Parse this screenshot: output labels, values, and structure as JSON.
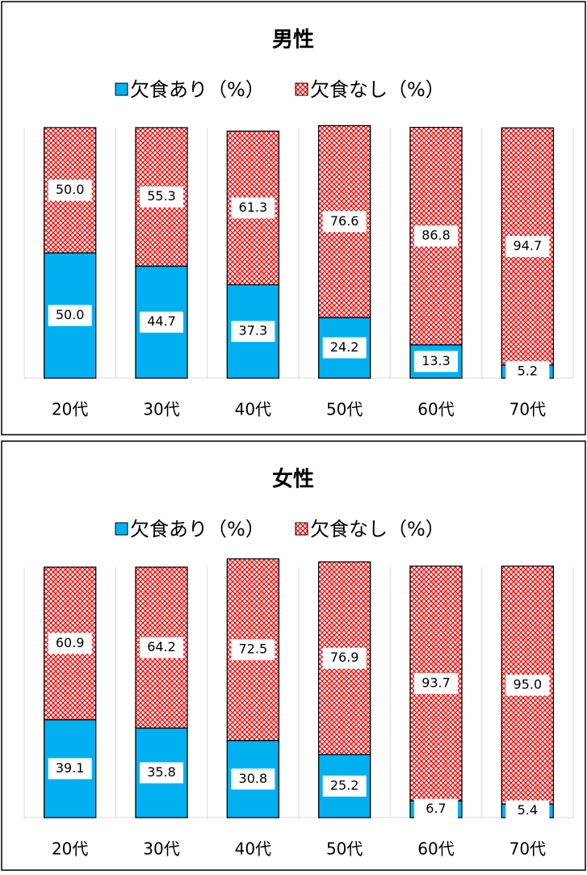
{
  "chart_data": [
    {
      "type": "stacked_bar",
      "title": "男性",
      "categories": [
        "20代",
        "30代",
        "40代",
        "50代",
        "60代",
        "70代"
      ],
      "series": [
        {
          "name": "欠食あり（%）",
          "color": "#00b0f0",
          "values": [
            50,
            44.7,
            37.3,
            24.2,
            13.3,
            5.2
          ],
          "value_labels": [
            "50.0",
            "44.7",
            "37.3",
            "24.2",
            "13.3",
            "5.2"
          ]
        },
        {
          "name": "欠食なし（%）",
          "color": "#ff0000",
          "values": [
            50,
            55.3,
            61.3,
            76.6,
            86.8,
            94.7
          ],
          "value_labels": [
            "50.0",
            "55.3",
            "61.3",
            "76.6",
            "86.8",
            "94.7"
          ]
        }
      ],
      "ylim": [
        0,
        100
      ]
    },
    {
      "type": "stacked_bar",
      "title": "女性",
      "categories": [
        "20代",
        "30代",
        "40代",
        "50代",
        "60代",
        "70代"
      ],
      "series": [
        {
          "name": "欠食あり（%）",
          "color": "#00b0f0",
          "values": [
            39.1,
            35.8,
            30.8,
            25.2,
            6.7,
            5.4
          ],
          "value_labels": [
            "39.1",
            "35.8",
            "30.8",
            "25.2",
            "6.7",
            "5.4"
          ]
        },
        {
          "name": "欠食なし（%）",
          "color": "#ff0000",
          "values": [
            60.9,
            64.2,
            72.5,
            76.9,
            93.7,
            95
          ],
          "value_labels": [
            "60.9",
            "64.2",
            "72.5",
            "76.9",
            "93.7",
            "95.0"
          ]
        }
      ],
      "ylim": [
        0,
        100
      ]
    }
  ]
}
